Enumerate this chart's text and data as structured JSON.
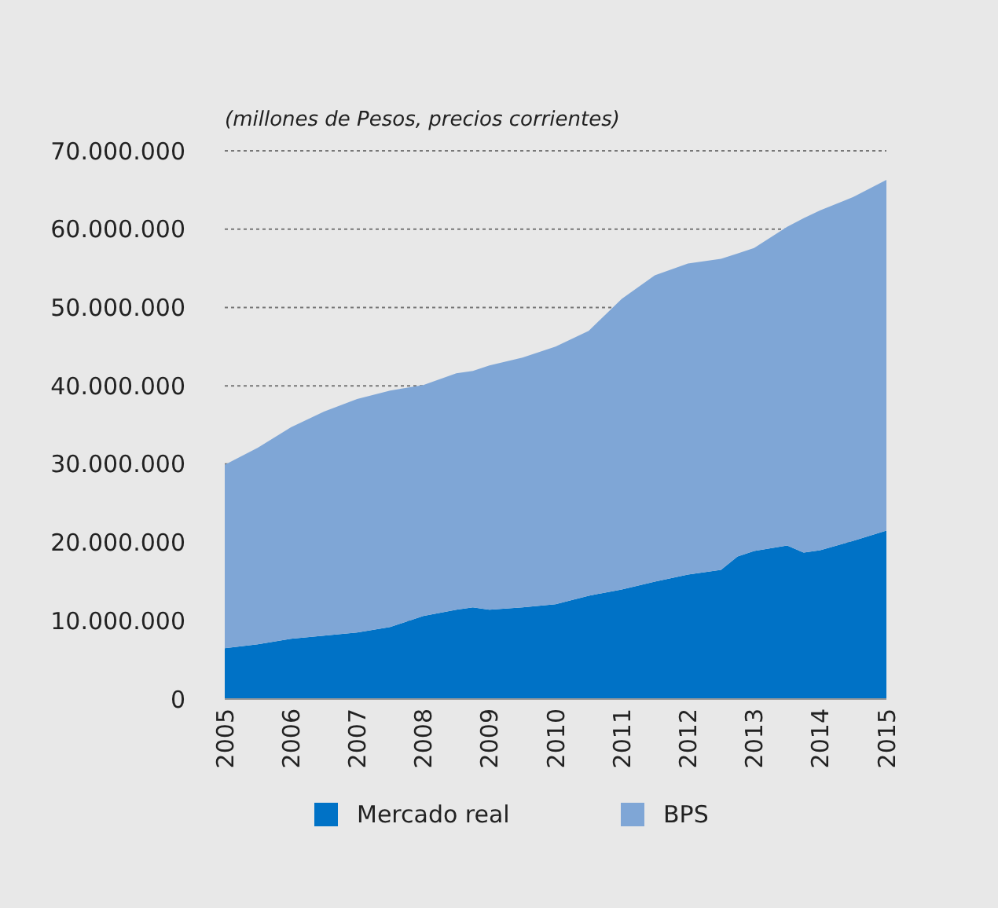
{
  "chart_data": {
    "type": "area",
    "stacked": true,
    "ylabel": "(millones de Pesos, precios corrientes)",
    "x": [
      2005,
      2005.5,
      2006,
      2006.5,
      2007,
      2007.5,
      2008,
      2008.5,
      2008.75,
      2009,
      2009.5,
      2010,
      2010.5,
      2011,
      2011.5,
      2012,
      2012.5,
      2012.75,
      2013,
      2013.5,
      2013.75,
      2014,
      2014.5,
      2015
    ],
    "series": [
      {
        "name": "Mercado real",
        "color": "#0072c6",
        "values": [
          6500000,
          7000000,
          7700000,
          8100000,
          8500000,
          9200000,
          10600000,
          11400000,
          11700000,
          11400000,
          11700000,
          12100000,
          13200000,
          14000000,
          15000000,
          15900000,
          16500000,
          18200000,
          18900000,
          19600000,
          18700000,
          19000000,
          20200000,
          21500000
        ]
      },
      {
        "name": "BPS",
        "color": "#7fa6d6",
        "values": [
          23400000,
          25100000,
          27000000,
          28600000,
          29800000,
          30200000,
          29500000,
          30200000,
          30200000,
          31200000,
          31900000,
          32900000,
          33800000,
          37100000,
          39100000,
          39700000,
          39700000,
          38700000,
          38700000,
          40700000,
          42700000,
          43400000,
          43900000,
          44800000
        ]
      }
    ],
    "xlim": [
      2005,
      2015
    ],
    "xticks": [
      2005,
      2006,
      2007,
      2008,
      2009,
      2010,
      2011,
      2012,
      2013,
      2014,
      2015
    ],
    "ylim": [
      0,
      70000000
    ],
    "yticks": [
      0,
      {
        "value": 10000000,
        "label": "10.000.000"
      },
      {
        "value": 20000000,
        "label": "20.000.000"
      },
      {
        "value": 30000000,
        "label": "30.000.000"
      },
      {
        "value": 40000000,
        "label": "40.000.000"
      },
      {
        "value": 50000000,
        "label": "50.000.000"
      },
      {
        "value": 60000000,
        "label": "60.000.000"
      },
      {
        "value": 70000000,
        "label": "70.000.000"
      }
    ],
    "grid": "y",
    "legend": "bottom",
    "line_style": "dotted"
  }
}
